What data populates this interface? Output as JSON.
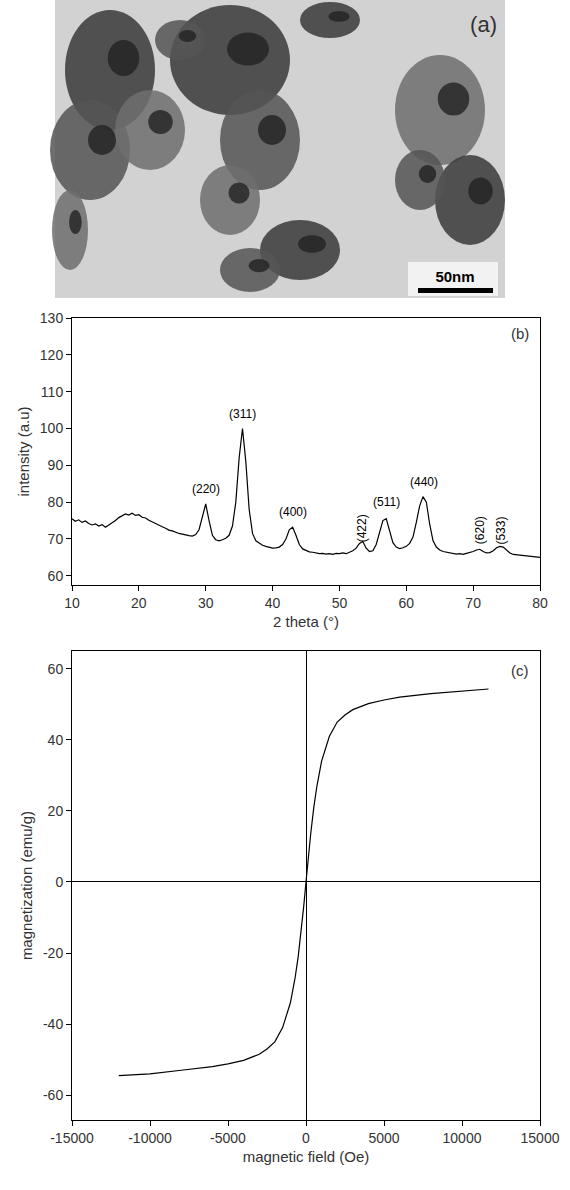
{
  "image": {
    "panel_label": "(a)",
    "scale_bar": "50nm"
  },
  "chart_data": [
    {
      "type": "line",
      "panel_label": "(b)",
      "x_label": "2 theta (°)",
      "y_label": "intensity (a.u)",
      "color": "#000000",
      "grid": false,
      "xlim": [
        10,
        80
      ],
      "xticks": [
        10,
        20,
        30,
        40,
        50,
        60,
        70,
        80
      ],
      "ylim": [
        57.5,
        130
      ],
      "yticks": [
        60,
        70,
        80,
        90,
        100,
        110,
        120,
        130
      ],
      "x": [
        10,
        10.5,
        11,
        11.5,
        12,
        12.5,
        13,
        13.5,
        14,
        14.5,
        15,
        15.5,
        16,
        16.5,
        17,
        17.5,
        18,
        18.5,
        19,
        19.5,
        20,
        20.5,
        21,
        21.5,
        22,
        22.5,
        23,
        23.5,
        24,
        24.5,
        25,
        25.5,
        26,
        26.5,
        27,
        27.5,
        28,
        28.5,
        29,
        29.5,
        30,
        30.5,
        31,
        31.5,
        32,
        32.5,
        33,
        33.5,
        34,
        34.5,
        35,
        35.5,
        36,
        36.5,
        37,
        37.5,
        38,
        38.5,
        39,
        39.5,
        40,
        40.5,
        41,
        41.5,
        42,
        42.5,
        43,
        43.5,
        44,
        44.5,
        45,
        45.5,
        46,
        46.5,
        47,
        47.5,
        48,
        48.5,
        49,
        49.5,
        50,
        50.5,
        51,
        51.5,
        52,
        52.5,
        53,
        53.5,
        54,
        54.5,
        55,
        55.5,
        56,
        56.5,
        57,
        57.5,
        58,
        58.5,
        59,
        59.5,
        60,
        60.5,
        61,
        61.5,
        62,
        62.5,
        63,
        63.5,
        64,
        64.5,
        65,
        65.5,
        66,
        66.5,
        67,
        67.5,
        68,
        68.5,
        69,
        69.5,
        70,
        70.5,
        71,
        71.5,
        72,
        72.5,
        73,
        73.5,
        74,
        74.5,
        75,
        75.5,
        76,
        76.5,
        77,
        77.5,
        78,
        78.5,
        79,
        79.5,
        80
      ],
      "values": [
        75.5,
        74.8,
        75.2,
        74.5,
        74.9,
        74.2,
        73.8,
        74.1,
        73.5,
        73.9,
        73.2,
        73.8,
        74.3,
        75.0,
        75.8,
        76.3,
        76.8,
        76.5,
        77.0,
        76.4,
        76.6,
        75.9,
        75.7,
        75.1,
        74.6,
        74.2,
        73.7,
        73.3,
        72.9,
        72.4,
        72.2,
        71.8,
        71.5,
        71.3,
        71.0,
        70.9,
        70.8,
        71.2,
        72.5,
        76.0,
        79.5,
        75.0,
        71.0,
        69.8,
        69.5,
        69.8,
        70.2,
        71.0,
        73.5,
        80.0,
        92.0,
        100.0,
        91.0,
        78.0,
        71.5,
        69.5,
        68.8,
        68.3,
        68.0,
        67.8,
        67.5,
        67.6,
        67.8,
        68.5,
        70.0,
        72.5,
        73.2,
        71.0,
        68.5,
        67.3,
        66.8,
        66.5,
        66.4,
        66.2,
        66.0,
        66.1,
        65.9,
        66.0,
        65.8,
        66.1,
        66.0,
        66.2,
        66.0,
        66.4,
        66.8,
        67.5,
        68.8,
        69.3,
        67.5,
        66.6,
        66.8,
        68.5,
        72.0,
        75.0,
        75.5,
        72.5,
        69.0,
        67.8,
        67.4,
        67.6,
        68.0,
        68.8,
        70.5,
        74.5,
        79.0,
        81.5,
        80.0,
        74.0,
        69.5,
        67.8,
        67.0,
        66.6,
        66.4,
        66.2,
        66.0,
        65.9,
        66.0,
        65.8,
        66.1,
        66.3,
        66.6,
        67.0,
        67.2,
        66.6,
        66.2,
        66.3,
        66.8,
        67.6,
        68.0,
        67.8,
        67.0,
        66.2,
        65.8,
        65.7,
        65.5,
        65.6,
        65.3,
        65.4,
        65.1,
        65.2,
        65.0
      ],
      "annotations": [
        {
          "text": "(220)",
          "x": 30,
          "y": 81
        },
        {
          "text": "(311)",
          "x": 35.5,
          "y": 101.5
        },
        {
          "text": "(400)",
          "x": 43,
          "y": 75
        },
        {
          "text": "(422)",
          "x": 53.5,
          "y": 68.5
        },
        {
          "text": "(511)",
          "x": 57,
          "y": 77.5
        },
        {
          "text": "(440)",
          "x": 62.7,
          "y": 83
        },
        {
          "text": "(620)",
          "x": 71,
          "y": 68
        },
        {
          "text": "(533)",
          "x": 74.2,
          "y": 68
        }
      ]
    },
    {
      "type": "line",
      "panel_label": "(c)",
      "x_label": "magnetic field (Oe)",
      "y_label": "magnetization (emu/g)",
      "color": "#000000",
      "grid": false,
      "xlim": [
        -15000,
        15000
      ],
      "xticks": [
        -15000,
        -10000,
        -5000,
        0,
        5000,
        10000,
        15000
      ],
      "ylim": [
        -67,
        65
      ],
      "yticks": [
        -60,
        -40,
        -20,
        0,
        20,
        40,
        60
      ],
      "x": [
        -12000,
        -10000,
        -8000,
        -6000,
        -5000,
        -4000,
        -3000,
        -2500,
        -2000,
        -1500,
        -1000,
        -700,
        -500,
        -300,
        -150,
        0,
        150,
        300,
        500,
        700,
        1000,
        1500,
        2000,
        2500,
        3000,
        4000,
        5000,
        6000,
        8000,
        10000,
        11700
      ],
      "values": [
        -54.5,
        -54,
        -53,
        -52,
        -51.2,
        -50.2,
        -48.5,
        -47,
        -45,
        -41,
        -34,
        -27,
        -21,
        -13.5,
        -7,
        0,
        7,
        13.5,
        21,
        27,
        34,
        41,
        45,
        47,
        48.5,
        50.2,
        51.2,
        52,
        53,
        53.8,
        54.3
      ]
    }
  ]
}
